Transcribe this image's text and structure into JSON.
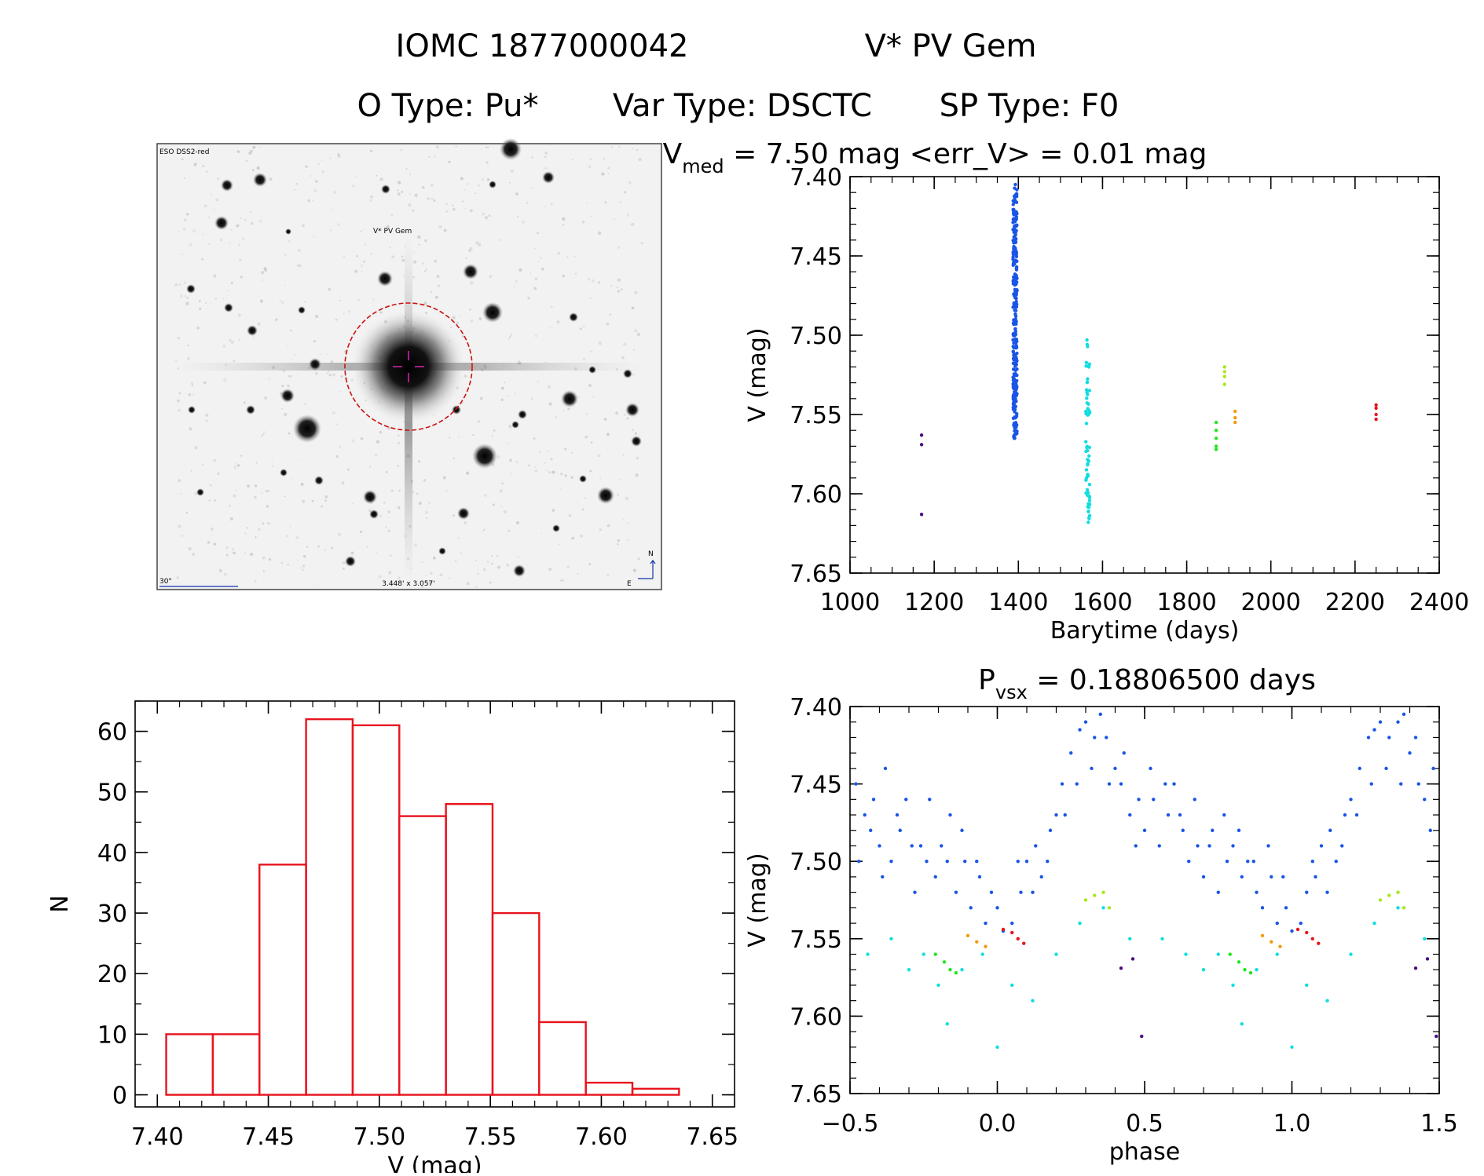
{
  "header": {
    "line1_id": "IOMC 1877000042",
    "line1_name": "V* PV Gem",
    "line2_otype": "O Type: Pu*",
    "line2_vartype": "Var Type: DSCTC",
    "line2_sptype": "SP Type: F0"
  },
  "finder": {
    "survey_label": "ESO DSS2-red",
    "target_label": "V* PV Gem",
    "scale_label": "30\"",
    "fov_label": "3.448' x 3.057'",
    "north_label": "N",
    "east_label": "E"
  },
  "colors": {
    "histogram": "#e8141e",
    "finder_circle": "#cc1111",
    "finder_cross": "#cc22aa",
    "finder_labels": "#1133aa",
    "finder_target_label": "#cc1111"
  },
  "chart_data": [
    {
      "id": "lightcurve",
      "type": "scatter",
      "title_main": "V",
      "title_sub": "med",
      "title_rest": " = 7.50 mag <err_V> = 0.01 mag",
      "xlabel": "Barytime (days)",
      "ylabel": "V (mag)",
      "xlim": [
        1000,
        2400
      ],
      "ylim": [
        7.65,
        7.4
      ],
      "y_inverted": true,
      "x_ticks": [
        1000,
        1200,
        1400,
        1600,
        1800,
        2000,
        2200,
        2400
      ],
      "x_tick_labels": [
        "1000",
        "1200",
        "1400",
        "1600",
        "1800",
        "2000",
        "2200",
        "2400"
      ],
      "y_ticks": [
        7.4,
        7.45,
        7.5,
        7.55,
        7.6,
        7.65
      ],
      "y_tick_labels": [
        "7.40",
        "7.45",
        "7.50",
        "7.55",
        "7.60",
        "7.65"
      ],
      "groups": [
        {
          "color": "#4b0a86",
          "x": 1170,
          "y": [
            7.563,
            7.569,
            7.613
          ]
        },
        {
          "color": "#1a55e6",
          "x": 1392,
          "y_min": 7.405,
          "y_max": 7.565,
          "n": 280
        },
        {
          "color": "#12dde0",
          "x": 1565,
          "y_min": 7.503,
          "y_max": 7.618,
          "n": 60
        },
        {
          "color": "#1ee81e",
          "x": 1870,
          "y": [
            7.555,
            7.56,
            7.565,
            7.57,
            7.572
          ]
        },
        {
          "color": "#a8e81a",
          "x": 1890,
          "y": [
            7.52,
            7.523,
            7.526,
            7.531
          ]
        },
        {
          "color": "#f39a11",
          "x": 1915,
          "y": [
            7.548,
            7.552,
            7.555
          ]
        },
        {
          "color": "#e8141e",
          "x": 2250,
          "y": [
            7.544,
            7.546,
            7.55,
            7.553
          ]
        }
      ]
    },
    {
      "id": "histogram",
      "type": "bar",
      "xlabel": "V (mag)",
      "ylabel": "N",
      "xlim": [
        7.39,
        7.66
      ],
      "ylim": [
        -2,
        65
      ],
      "bin_edges": [
        7.404,
        7.425,
        7.446,
        7.467,
        7.488,
        7.509,
        7.53,
        7.551,
        7.572,
        7.593,
        7.614,
        7.635
      ],
      "values": [
        10,
        10,
        38,
        62,
        61,
        46,
        48,
        30,
        12,
        2,
        1
      ],
      "x_ticks": [
        7.4,
        7.45,
        7.5,
        7.55,
        7.6,
        7.65
      ],
      "x_tick_labels": [
        "7.40",
        "7.45",
        "7.50",
        "7.55",
        "7.60",
        "7.65"
      ],
      "y_ticks": [
        0,
        10,
        20,
        30,
        40,
        50,
        60
      ],
      "y_tick_labels": [
        "0",
        "10",
        "20",
        "30",
        "40",
        "50",
        "60"
      ]
    },
    {
      "id": "phased",
      "type": "scatter",
      "title_main": "P",
      "title_sub": "vsx",
      "title_rest": " = 0.18806500 days",
      "xlabel": "phase",
      "ylabel": "V (mag)",
      "xlim": [
        -0.5,
        1.5
      ],
      "ylim": [
        7.65,
        7.4
      ],
      "y_inverted": true,
      "x_ticks": [
        -0.5,
        0.0,
        0.5,
        1.0,
        1.5
      ],
      "x_tick_labels": [
        "−0.5",
        "0.0",
        "0.5",
        "1.0",
        "1.5"
      ],
      "y_ticks": [
        7.4,
        7.45,
        7.5,
        7.55,
        7.6,
        7.65
      ],
      "y_tick_labels": [
        "7.40",
        "7.45",
        "7.50",
        "7.55",
        "7.60",
        "7.65"
      ],
      "groups": [
        {
          "color": "#1a55e6",
          "points": [
            [
              -0.48,
              7.45
            ],
            [
              -0.45,
              7.47
            ],
            [
              -0.42,
              7.46
            ],
            [
              -0.4,
              7.49
            ],
            [
              -0.38,
              7.44
            ],
            [
              -0.36,
              7.5
            ],
            [
              -0.33,
              7.48
            ],
            [
              -0.31,
              7.46
            ],
            [
              -0.28,
              7.52
            ],
            [
              -0.26,
              7.49
            ],
            [
              -0.24,
              7.5
            ],
            [
              -0.21,
              7.51
            ],
            [
              -0.19,
              7.49
            ],
            [
              -0.16,
              7.47
            ],
            [
              -0.14,
              7.52
            ],
            [
              -0.11,
              7.5
            ],
            [
              -0.09,
              7.53
            ],
            [
              -0.06,
              7.51
            ],
            [
              -0.04,
              7.54
            ],
            [
              -0.02,
              7.52
            ],
            [
              0.0,
              7.53
            ],
            [
              0.02,
              7.545
            ],
            [
              0.05,
              7.54
            ],
            [
              0.08,
              7.52
            ],
            [
              0.1,
              7.5
            ],
            [
              0.13,
              7.49
            ],
            [
              0.15,
              7.51
            ],
            [
              0.18,
              7.48
            ],
            [
              0.2,
              7.47
            ],
            [
              0.22,
              7.45
            ],
            [
              0.25,
              7.43
            ],
            [
              0.28,
              7.415
            ],
            [
              0.3,
              7.41
            ],
            [
              0.33,
              7.42
            ],
            [
              0.35,
              7.405
            ],
            [
              0.37,
              7.42
            ],
            [
              0.4,
              7.44
            ],
            [
              0.42,
              7.45
            ],
            [
              0.45,
              7.47
            ],
            [
              0.48,
              7.46
            ],
            [
              0.5,
              7.48
            ],
            [
              0.53,
              7.46
            ],
            [
              0.55,
              7.49
            ],
            [
              0.58,
              7.47
            ],
            [
              0.6,
              7.45
            ],
            [
              0.63,
              7.48
            ],
            [
              0.65,
              7.5
            ],
            [
              0.68,
              7.49
            ],
            [
              0.7,
              7.51
            ],
            [
              0.73,
              7.48
            ],
            [
              0.75,
              7.52
            ],
            [
              0.78,
              7.5
            ],
            [
              0.8,
              7.49
            ],
            [
              0.83,
              7.51
            ],
            [
              0.85,
              7.5
            ],
            [
              0.88,
              7.52
            ],
            [
              0.9,
              7.53
            ],
            [
              0.93,
              7.51
            ],
            [
              0.95,
              7.54
            ],
            [
              0.98,
              7.53
            ],
            [
              1.0,
              7.545
            ],
            [
              1.03,
              7.54
            ],
            [
              1.05,
              7.52
            ],
            [
              1.08,
              7.51
            ],
            [
              1.1,
              7.49
            ],
            [
              1.13,
              7.48
            ],
            [
              1.15,
              7.5
            ],
            [
              1.18,
              7.47
            ],
            [
              1.2,
              7.46
            ],
            [
              1.23,
              7.44
            ],
            [
              1.26,
              7.42
            ],
            [
              1.28,
              7.415
            ],
            [
              1.3,
              7.41
            ],
            [
              1.33,
              7.42
            ],
            [
              1.36,
              7.41
            ],
            [
              1.38,
              7.405
            ],
            [
              1.4,
              7.43
            ],
            [
              1.43,
              7.45
            ],
            [
              1.45,
              7.46
            ],
            [
              1.48,
              7.44
            ],
            [
              -0.47,
              7.5
            ],
            [
              -0.43,
              7.48
            ],
            [
              -0.39,
              7.51
            ],
            [
              -0.34,
              7.47
            ],
            [
              -0.29,
              7.49
            ],
            [
              -0.23,
              7.46
            ],
            [
              -0.17,
              7.5
            ],
            [
              -0.12,
              7.48
            ],
            [
              -0.07,
              7.5
            ],
            [
              0.07,
              7.5
            ],
            [
              0.12,
              7.52
            ],
            [
              0.17,
              7.5
            ],
            [
              0.23,
              7.47
            ],
            [
              0.27,
              7.45
            ],
            [
              0.32,
              7.44
            ],
            [
              0.38,
              7.45
            ],
            [
              0.43,
              7.43
            ],
            [
              0.47,
              7.49
            ],
            [
              0.52,
              7.44
            ],
            [
              0.57,
              7.45
            ],
            [
              0.62,
              7.47
            ],
            [
              0.67,
              7.46
            ],
            [
              0.72,
              7.49
            ],
            [
              0.77,
              7.47
            ],
            [
              0.82,
              7.48
            ],
            [
              0.87,
              7.5
            ],
            [
              0.92,
              7.49
            ],
            [
              0.97,
              7.51
            ],
            [
              1.07,
              7.5
            ],
            [
              1.12,
              7.52
            ],
            [
              1.17,
              7.49
            ],
            [
              1.22,
              7.47
            ],
            [
              1.27,
              7.45
            ],
            [
              1.32,
              7.44
            ],
            [
              1.37,
              7.45
            ],
            [
              1.42,
              7.42
            ],
            [
              1.47,
              7.48
            ]
          ]
        },
        {
          "color": "#12dde0",
          "points": [
            [
              -0.44,
              7.56
            ],
            [
              -0.36,
              7.55
            ],
            [
              -0.3,
              7.57
            ],
            [
              -0.25,
              7.56
            ],
            [
              -0.2,
              7.58
            ],
            [
              -0.17,
              7.605
            ],
            [
              -0.12,
              7.57
            ],
            [
              -0.05,
              7.56
            ],
            [
              0.0,
              7.62
            ],
            [
              0.05,
              7.58
            ],
            [
              0.12,
              7.59
            ],
            [
              0.2,
              7.56
            ],
            [
              0.28,
              7.54
            ],
            [
              0.36,
              7.53
            ],
            [
              0.45,
              7.55
            ],
            [
              0.56,
              7.55
            ],
            [
              0.64,
              7.56
            ],
            [
              0.7,
              7.57
            ],
            [
              0.75,
              7.56
            ],
            [
              0.8,
              7.58
            ],
            [
              0.83,
              7.605
            ],
            [
              0.88,
              7.57
            ],
            [
              0.95,
              7.56
            ],
            [
              1.0,
              7.62
            ],
            [
              1.05,
              7.58
            ],
            [
              1.12,
              7.59
            ],
            [
              1.2,
              7.56
            ],
            [
              1.28,
              7.54
            ],
            [
              1.36,
              7.53
            ],
            [
              1.45,
              7.55
            ]
          ]
        },
        {
          "color": "#1ee81e",
          "points": [
            [
              -0.21,
              7.56
            ],
            [
              -0.18,
              7.565
            ],
            [
              -0.16,
              7.57
            ],
            [
              -0.14,
              7.572
            ],
            [
              0.79,
              7.56
            ],
            [
              0.82,
              7.565
            ],
            [
              0.84,
              7.57
            ],
            [
              0.86,
              7.572
            ]
          ]
        },
        {
          "color": "#a8e81a",
          "points": [
            [
              0.3,
              7.525
            ],
            [
              0.33,
              7.522
            ],
            [
              0.36,
              7.52
            ],
            [
              0.38,
              7.53
            ],
            [
              1.3,
              7.525
            ],
            [
              1.33,
              7.522
            ],
            [
              1.36,
              7.52
            ],
            [
              1.38,
              7.53
            ]
          ]
        },
        {
          "color": "#f39a11",
          "points": [
            [
              -0.1,
              7.548
            ],
            [
              -0.07,
              7.552
            ],
            [
              -0.04,
              7.555
            ],
            [
              0.9,
              7.548
            ],
            [
              0.93,
              7.552
            ],
            [
              0.96,
              7.555
            ]
          ]
        },
        {
          "color": "#e8141e",
          "points": [
            [
              0.02,
              7.544
            ],
            [
              0.05,
              7.546
            ],
            [
              0.07,
              7.55
            ],
            [
              0.09,
              7.553
            ],
            [
              1.02,
              7.544
            ],
            [
              1.05,
              7.546
            ],
            [
              1.07,
              7.55
            ],
            [
              1.09,
              7.553
            ]
          ]
        },
        {
          "color": "#4b0a86",
          "points": [
            [
              0.42,
              7.569
            ],
            [
              0.46,
              7.563
            ],
            [
              0.49,
              7.613
            ],
            [
              1.42,
              7.569
            ],
            [
              1.46,
              7.563
            ],
            [
              1.49,
              7.613
            ]
          ]
        }
      ]
    }
  ]
}
